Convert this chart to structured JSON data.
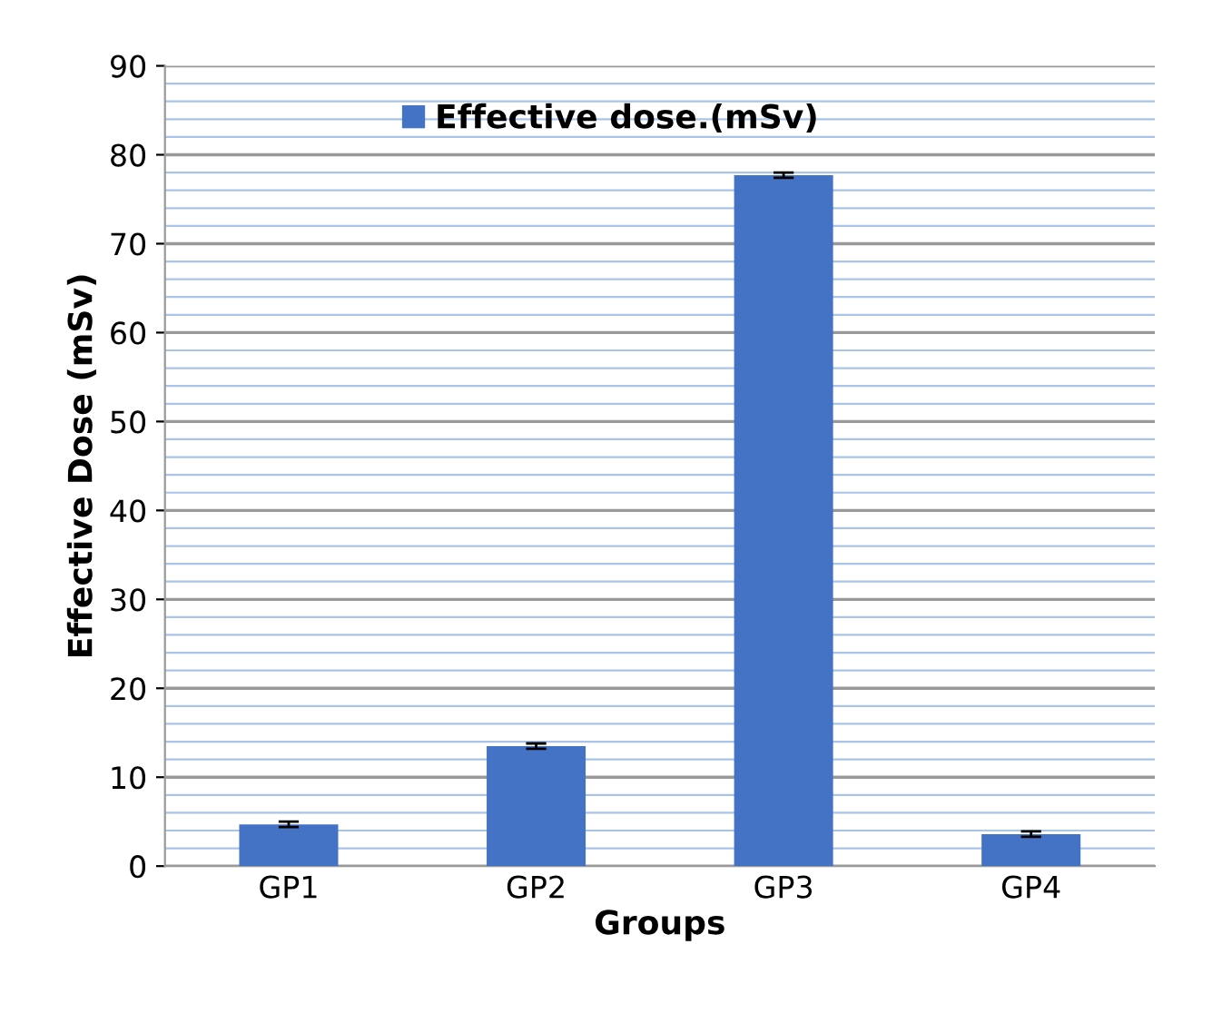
{
  "chart_data": {
    "type": "bar",
    "xlabel": "Groups",
    "ylabel": "Effective Dose (mSv)",
    "categories": [
      "GP1",
      "GP2",
      "GP3",
      "GP4"
    ],
    "series": [
      {
        "name": "Effective dose.(mSv)",
        "color": "#4472c4",
        "values": [
          4.7,
          13.5,
          77.7,
          3.6
        ],
        "errors": [
          0.3,
          0.3,
          0.3,
          0.3
        ]
      }
    ],
    "ylim": [
      0,
      90
    ],
    "yticks": [
      0,
      {
        "value": 2,
        "label": null
      },
      {
        "value": 4,
        "label": null
      },
      {
        "value": 6,
        "label": null
      },
      {
        "value": 8,
        "label": null
      },
      10,
      {
        "value": 12,
        "label": null
      },
      {
        "value": 14,
        "label": null
      },
      {
        "value": 16,
        "label": null
      },
      {
        "value": 18,
        "label": null
      },
      20,
      {
        "value": 22,
        "label": null
      },
      {
        "value": 24,
        "label": null
      },
      {
        "value": 26,
        "label": null
      },
      {
        "value": 28,
        "label": null
      },
      30,
      {
        "value": 32,
        "label": null
      },
      {
        "value": 34,
        "label": null
      },
      {
        "value": 36,
        "label": null
      },
      {
        "value": 38,
        "label": null
      },
      40,
      {
        "value": 42,
        "label": null
      },
      {
        "value": 44,
        "label": null
      },
      {
        "value": 46,
        "label": null
      },
      {
        "value": 48,
        "label": null
      },
      50,
      {
        "value": 52,
        "label": null
      },
      {
        "value": 54,
        "label": null
      },
      {
        "value": 56,
        "label": null
      },
      {
        "value": 58,
        "label": null
      },
      60,
      {
        "value": 62,
        "label": null
      },
      {
        "value": 64,
        "label": null
      },
      {
        "value": 66,
        "label": null
      },
      {
        "value": 68,
        "label": null
      },
      70,
      {
        "value": 72,
        "label": null
      },
      {
        "value": 74,
        "label": null
      },
      {
        "value": 76,
        "label": null
      },
      {
        "value": 78,
        "label": null
      },
      80,
      {
        "value": 82,
        "label": null
      },
      {
        "value": 84,
        "label": null
      },
      {
        "value": 86,
        "label": null
      },
      {
        "value": 88,
        "label": null
      },
      90
    ],
    "grid": "y",
    "legend": "top"
  }
}
